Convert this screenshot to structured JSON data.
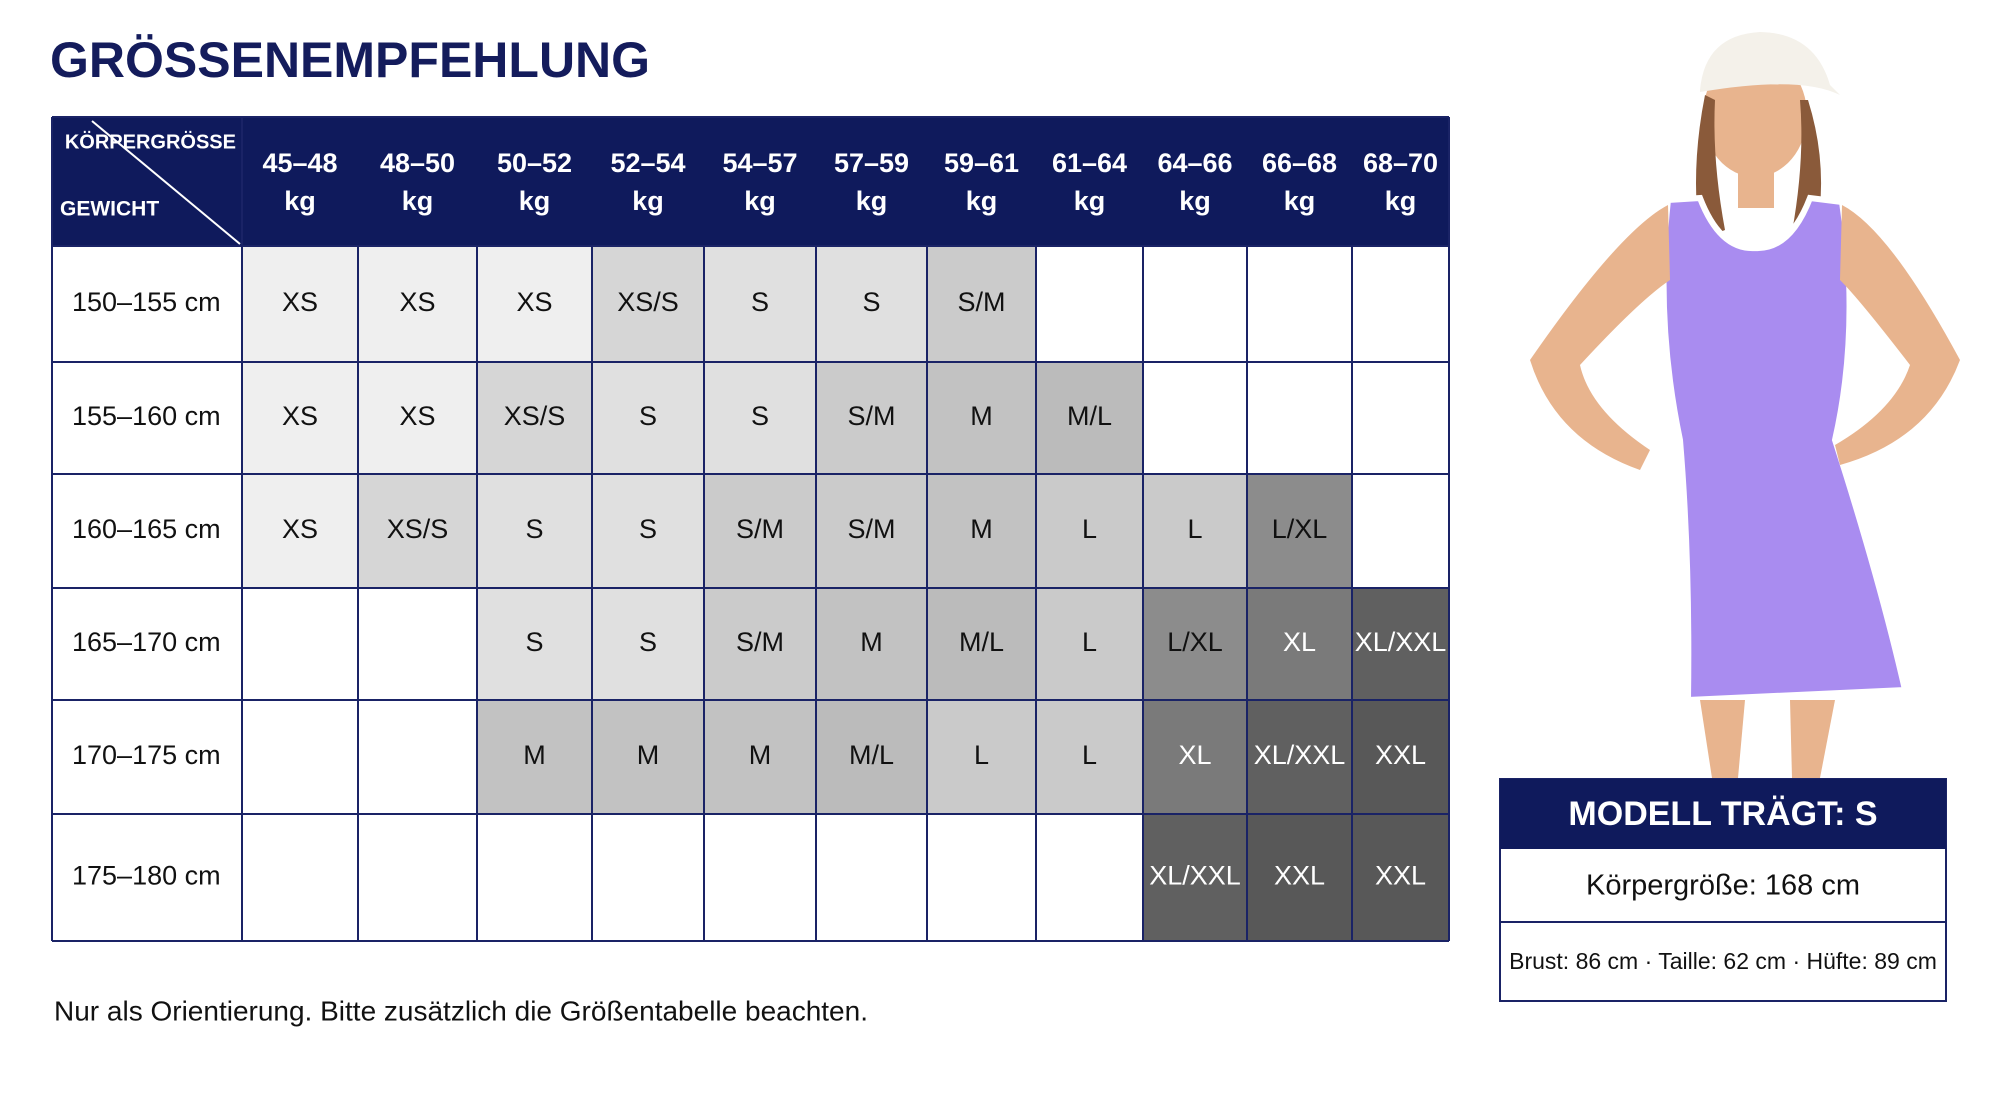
{
  "header": {
    "title": "GRÖSSENEMPFEHLUNG"
  },
  "table": {
    "corner_top": "KÖRPERGRÖSSE",
    "corner_bottom": "GEWICHT",
    "columns": [
      {
        "range": "45–48",
        "unit": "kg"
      },
      {
        "range": "48–50",
        "unit": "kg"
      },
      {
        "range": "50–52",
        "unit": "kg"
      },
      {
        "range": "52–54",
        "unit": "kg"
      },
      {
        "range": "54–57",
        "unit": "kg"
      },
      {
        "range": "57–59",
        "unit": "kg"
      },
      {
        "range": "59–61",
        "unit": "kg"
      },
      {
        "range": "61–64",
        "unit": "kg"
      },
      {
        "range": "64–66",
        "unit": "kg"
      },
      {
        "range": "66–68",
        "unit": "kg"
      },
      {
        "range": "68–70",
        "unit": "kg"
      }
    ],
    "rows": [
      {
        "label": "150–155 cm",
        "cells": [
          "XS",
          "XS",
          "XS",
          "XS/S",
          "S",
          "S",
          "S/M",
          null,
          null,
          null,
          null
        ]
      },
      {
        "label": "155–160 cm",
        "cells": [
          "XS",
          "XS",
          "XS/S",
          "S",
          "S",
          "S/M",
          "M",
          "M/L",
          null,
          null,
          null
        ]
      },
      {
        "label": "160–165 cm",
        "cells": [
          "XS",
          "XS/S",
          "S",
          "S",
          "S/M",
          "S/M",
          "M",
          "L",
          "L",
          "L/XL",
          null
        ]
      },
      {
        "label": "165–170 cm",
        "cells": [
          null,
          null,
          "S",
          "S",
          "S/M",
          "M",
          "M/L",
          "L",
          "L/XL",
          "XL",
          "XL/XXL"
        ]
      },
      {
        "label": "170–175 cm",
        "cells": [
          null,
          null,
          "M",
          "M",
          "M",
          "M/L",
          "L",
          "L",
          "XL",
          "XL/XXL",
          "XXL"
        ]
      },
      {
        "label": "175–180 cm",
        "cells": [
          null,
          null,
          null,
          null,
          null,
          null,
          null,
          null,
          "XL/XXL",
          "XXL",
          "XXL"
        ]
      }
    ]
  },
  "size_colors": {
    "XS": "#efefef",
    "XS/S": "#d6d6d6",
    "S": "#e0e0e0",
    "S/M": "#cbcbcb",
    "M": "#c2c2c2",
    "M/L": "#bbbbbb",
    "L": "#cacaca",
    "L/XL": "#8c8c8c",
    "XL": "#7a7a7a",
    "XL/XXL": "#606060",
    "XXL": "#585858"
  },
  "model": {
    "title": "MODELL TRÄGT: S",
    "height": "Körpergröße: 168 cm",
    "measures": "Brust: 86 cm · Taille: 62 cm · Hüfte: 89 cm"
  },
  "footer": "Nur als Orientierung. Bitte zusätzlich die Größentabelle beachten."
}
